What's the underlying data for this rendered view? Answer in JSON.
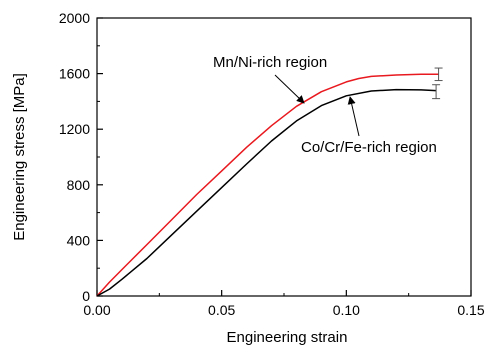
{
  "chart_data": {
    "type": "line",
    "title": "",
    "xlabel": "Engineering strain",
    "ylabel": "Engineering stress [MPa]",
    "xlim": [
      0.0,
      0.15
    ],
    "ylim": [
      0,
      2000
    ],
    "xticks": [
      0.0,
      0.05,
      0.1,
      0.15
    ],
    "xtick_labels": [
      "0.00",
      "0.05",
      "0.10",
      "0.15"
    ],
    "yticks": [
      0,
      400,
      800,
      1200,
      1600,
      2000
    ],
    "ytick_labels": [
      "0",
      "400",
      "800",
      "1200",
      "1600",
      "2000"
    ],
    "grid": false,
    "legend": "none",
    "series": [
      {
        "name": "Mn/Ni-rich region",
        "color": "#e8191f",
        "x": [
          0.0,
          0.005,
          0.01,
          0.02,
          0.03,
          0.04,
          0.05,
          0.06,
          0.07,
          0.08,
          0.09,
          0.1,
          0.105,
          0.11,
          0.12,
          0.13,
          0.137
        ],
        "y": [
          0,
          100,
          190,
          370,
          550,
          730,
          900,
          1070,
          1225,
          1365,
          1470,
          1540,
          1565,
          1580,
          1590,
          1595,
          1595
        ],
        "error_bar": {
          "x": 0.137,
          "y": 1595,
          "low": 1550,
          "high": 1640
        }
      },
      {
        "name": "Co/Cr/Fe-rich region",
        "color": "#000000",
        "x": [
          0.0,
          0.005,
          0.01,
          0.02,
          0.03,
          0.04,
          0.05,
          0.06,
          0.07,
          0.08,
          0.09,
          0.1,
          0.11,
          0.12,
          0.13,
          0.136
        ],
        "y": [
          0,
          50,
          120,
          270,
          440,
          610,
          780,
          950,
          1115,
          1260,
          1370,
          1440,
          1475,
          1485,
          1483,
          1478
        ],
        "error_bar": {
          "x": 0.136,
          "y": 1478,
          "low": 1420,
          "high": 1520
        }
      }
    ],
    "annotations": [
      {
        "text": "Mn/Ni-rich region",
        "target_series": 0
      },
      {
        "text": "Co/Cr/Fe-rich region",
        "target_series": 1
      }
    ]
  }
}
